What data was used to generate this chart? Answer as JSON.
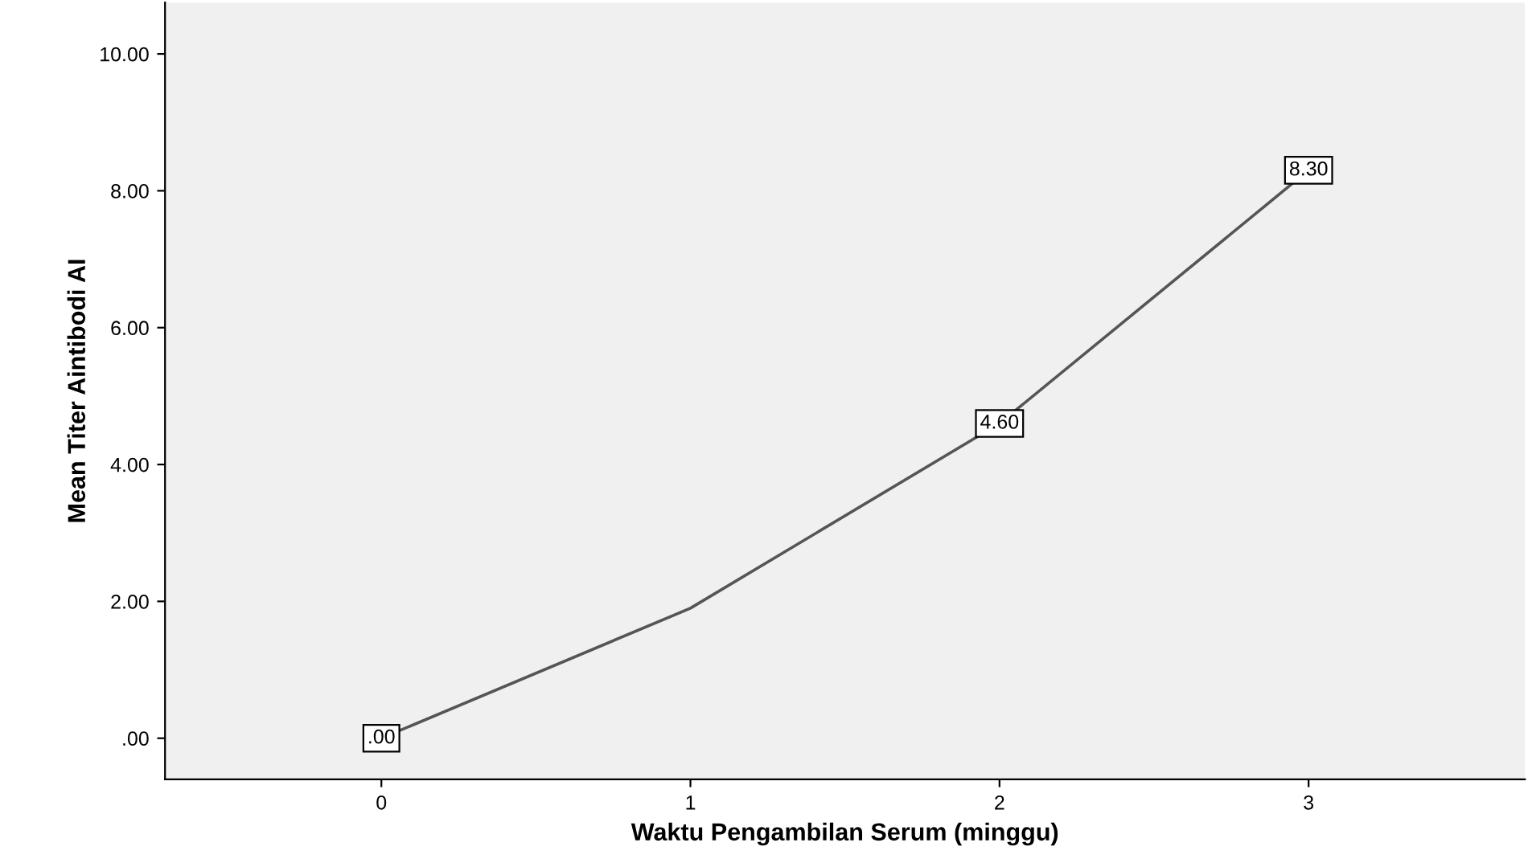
{
  "chart_data": {
    "type": "line",
    "xlabel": "Waktu Pengambilan Serum (minggu)",
    "ylabel": "Mean Titer Aintibodi AI",
    "categories": [
      "0",
      "1",
      "2",
      "3"
    ],
    "series": [
      {
        "color": "#555555",
        "values": [
          0,
          1.9,
          4.6,
          8.3
        ],
        "value_labels": [
          ".00",
          null,
          "4.60",
          "8.30"
        ]
      }
    ],
    "ylim": [
      -0.6,
      10.75
    ],
    "yticks": [
      {
        "value": 0,
        "label": ".00"
      },
      {
        "value": 2,
        "label": "2.00"
      },
      {
        "value": 4,
        "label": "4.00"
      },
      {
        "value": 6,
        "label": "6.00"
      },
      {
        "value": 8,
        "label": "8.00"
      },
      {
        "value": 10,
        "label": "10.00"
      }
    ],
    "grid": false,
    "legend": false,
    "line_style": "solid"
  }
}
